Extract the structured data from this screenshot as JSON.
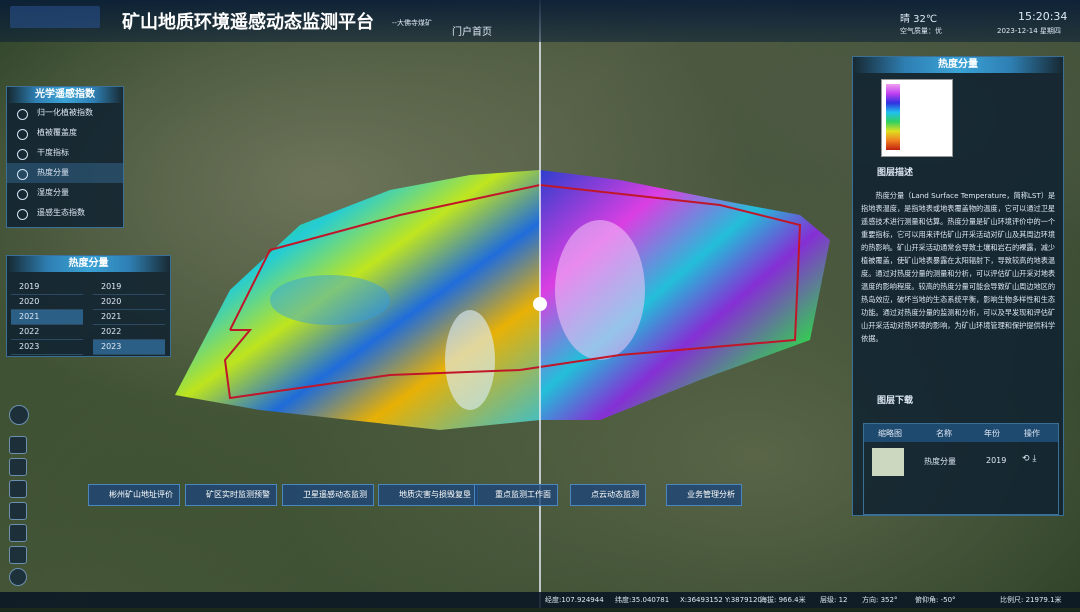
{
  "header": {
    "title": "矿山地质环境遥感动态监测平台",
    "subtitle": "--大佛寺煤矿",
    "nav": "门户首页",
    "weather": "晴 32℃",
    "air_quality": "空气质量：优",
    "time": "15:20:34",
    "date": "2023-12-14 星期四"
  },
  "index_panel": {
    "title": "光学遥感指数",
    "items": [
      "归一化植被指数",
      "植被覆盖度",
      "干度指标",
      "热度分量",
      "湿度分量",
      "遥感生态指数"
    ]
  },
  "year_panel": {
    "title": "热度分量",
    "left_years": [
      "2019",
      "2020",
      "2021",
      "2022",
      "2023"
    ],
    "right_years": [
      "2019",
      "2020",
      "2021",
      "2022",
      "2023"
    ]
  },
  "layer_panel": {
    "title": "热度分量",
    "description_title": "图层描述",
    "description": "热度分量（Land Surface Temperature，简称LST）是指地表温度，是指地表或地表覆盖物的温度，它可以通过卫星遥感技术进行测量和估算。热度分量是矿山环境评价中的一个重要指标，它可以用来评估矿山开采活动对矿山及其周边环境的热影响。矿山开采活动通常会导致土壤和岩石的裸露，减少植被覆盖，使矿山地表暴露在太阳辐射下，导致较高的地表温度。通过对热度分量的测量和分析，可以评估矿山开采对地表温度的影响程度。较高的热度分量可能会导致矿山周边地区的热岛效应，破坏当地的生态系统平衡，影响生物多样性和生态功能。通过对热度分量的监测和分析，可以及早发现和评估矿山开采活动对热环境的影响，为矿山环境管理和保护提供科学依据。",
    "download_title": "图层下载",
    "table": {
      "headers": [
        "缩略图",
        "名称",
        "年份",
        "操作"
      ],
      "rows": [
        [
          "热度分量",
          "2019"
        ]
      ]
    }
  },
  "toolbar": [
    "彬州矿山地址评价",
    "矿区实时监测预警",
    "卫星遥感动态监测",
    "地质灾害与损毁复垦",
    "重点监测工作面",
    "点云动态监测",
    "业务管理分析"
  ],
  "status_bar": [
    "经度:107.924944",
    "纬度:35.040781",
    "X:36493152 Y:3879120",
    "海拔: 966.4米",
    "层级: 12",
    "方向: 352°",
    "俯仰角: -50°",
    "比例尺: 21979.1米"
  ]
}
